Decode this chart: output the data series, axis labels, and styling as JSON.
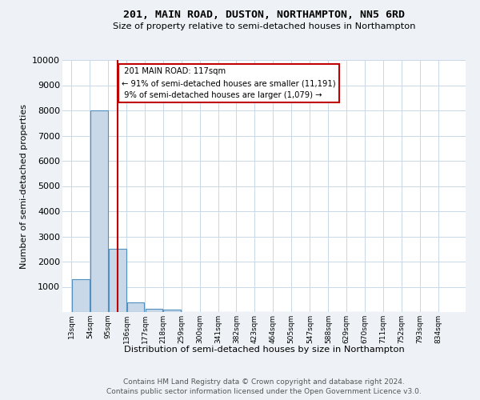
{
  "title": "201, MAIN ROAD, DUSTON, NORTHAMPTON, NN5 6RD",
  "subtitle": "Size of property relative to semi-detached houses in Northampton",
  "xlabel": "Distribution of semi-detached houses by size in Northampton",
  "ylabel": "Number of semi-detached properties",
  "bins": [
    13,
    54,
    95,
    136,
    177,
    218,
    259,
    300,
    341,
    382,
    423,
    464,
    505,
    547,
    588,
    629,
    670,
    711,
    752,
    793,
    834
  ],
  "counts": [
    1300,
    8000,
    2500,
    380,
    140,
    100,
    0,
    0,
    0,
    0,
    0,
    0,
    0,
    0,
    0,
    0,
    0,
    0,
    0,
    0
  ],
  "bar_color": "#c8d8e8",
  "bar_edge_color": "#5090c0",
  "property_value": 117,
  "property_label": "201 MAIN ROAD: 117sqm",
  "pct_smaller": 91,
  "n_smaller": 11191,
  "pct_larger": 9,
  "n_larger": 1079,
  "vline_color": "#c00000",
  "annotation_box_color": "#c00000",
  "ylim": [
    0,
    10000
  ],
  "yticks": [
    0,
    1000,
    2000,
    3000,
    4000,
    5000,
    6000,
    7000,
    8000,
    9000,
    10000
  ],
  "tick_labels": [
    "13sqm",
    "54sqm",
    "95sqm",
    "136sqm",
    "177sqm",
    "218sqm",
    "259sqm",
    "300sqm",
    "341sqm",
    "382sqm",
    "423sqm",
    "464sqm",
    "505sqm",
    "547sqm",
    "588sqm",
    "629sqm",
    "670sqm",
    "711sqm",
    "752sqm",
    "793sqm",
    "834sqm"
  ],
  "footer1": "Contains HM Land Registry data © Crown copyright and database right 2024.",
  "footer2": "Contains public sector information licensed under the Open Government Licence v3.0.",
  "background_color": "#eef2f6",
  "plot_bg_color": "#ffffff",
  "grid_color": "#c8d8e8"
}
